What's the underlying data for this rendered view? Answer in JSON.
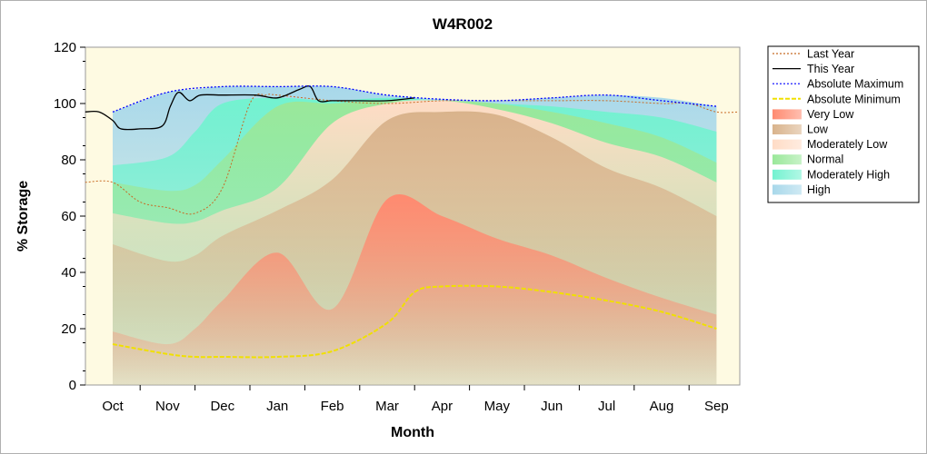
{
  "chart_data": {
    "type": "area",
    "title": "W4R002",
    "xlabel": "Month",
    "ylabel": "% Storage",
    "categories": [
      "Oct",
      "Nov",
      "Dec",
      "Jan",
      "Feb",
      "Mar",
      "Apr",
      "May",
      "Jun",
      "Jul",
      "Aug",
      "Sep"
    ],
    "yticks": [
      0,
      20,
      40,
      60,
      80,
      100,
      120
    ],
    "ylim": [
      0,
      120
    ],
    "grid": false,
    "legend_position": "top-right",
    "x": [
      0,
      1,
      1.5,
      2,
      3,
      4,
      5,
      6,
      7,
      8,
      9,
      10,
      11
    ],
    "bands": [
      {
        "name": "Very Low",
        "color": "#ff8a70",
        "values": [
          19,
          14.5,
          20,
          30,
          47,
          27,
          66,
          60,
          52,
          46,
          38,
          31,
          25
        ]
      },
      {
        "name": "Low",
        "color": "#d9b38c",
        "values": [
          50,
          44,
          46,
          53,
          62,
          73,
          94,
          97,
          96,
          88,
          77,
          70,
          60
        ]
      },
      {
        "name": "Moderately Low",
        "color": "#ffdcc6",
        "values": [
          61,
          57.5,
          58,
          62,
          70,
          93,
          100,
          101,
          98,
          93,
          86,
          81,
          72
        ]
      },
      {
        "name": "Normal",
        "color": "#9ae89a",
        "values": [
          72,
          69,
          71,
          80,
          99,
          100,
          101,
          101,
          100,
          97,
          93,
          88,
          79
        ]
      },
      {
        "name": "Moderately High",
        "color": "#73f2d0",
        "values": [
          78,
          81,
          90,
          100,
          102,
          101,
          102,
          101,
          100,
          99,
          97,
          95,
          90
        ]
      },
      {
        "name": "High",
        "color": "#a8d8ea",
        "values": [
          97,
          104,
          105,
          106,
          106,
          106,
          103,
          101.5,
          101,
          102,
          103,
          102,
          99
        ]
      }
    ],
    "series": [
      {
        "name": "Last Year",
        "color": "#c86a24",
        "x": [
          -0.5,
          0,
          0.5,
          1,
          1.5,
          2,
          2.5,
          2.8,
          3,
          4,
          5,
          6,
          7,
          8,
          9,
          10,
          10.5,
          11,
          11.4
        ],
        "values": [
          72,
          72,
          65,
          63,
          61,
          70,
          100,
          103,
          103,
          101,
          100,
          101,
          101,
          101,
          101,
          100,
          100,
          97,
          97
        ]
      },
      {
        "name": "This Year",
        "color": "#000000",
        "x": [
          -0.5,
          -0.25,
          0,
          0.15,
          0.5,
          0.9,
          1.05,
          1.2,
          1.4,
          1.6,
          2,
          2.6,
          3,
          3.4,
          3.6,
          3.75,
          4,
          4.4,
          5,
          5.5
        ],
        "values": [
          97,
          97,
          94,
          91,
          91,
          92,
          99,
          104,
          101,
          103,
          103,
          103,
          102,
          105,
          106,
          101,
          101,
          101,
          101,
          102
        ]
      },
      {
        "name": "Absolute Maximum",
        "color": "#0000ff",
        "x": [
          0,
          1,
          2,
          3,
          4,
          5,
          6,
          7,
          8,
          9,
          10,
          11
        ],
        "values": [
          97,
          104,
          106,
          106,
          106,
          103,
          101.5,
          101,
          102,
          103,
          101,
          99
        ]
      },
      {
        "name": "Absolute Minimum",
        "color": "#f0e000",
        "x": [
          0,
          1,
          1.5,
          2,
          3,
          4,
          5,
          5.5,
          6,
          7,
          8,
          9,
          10,
          11
        ],
        "values": [
          14.5,
          11,
          10,
          10,
          10,
          12,
          22,
          33,
          35,
          35,
          33,
          30,
          26,
          20
        ]
      }
    ],
    "legend": [
      {
        "label": "Last Year",
        "kind": "line",
        "color": "#c86a24"
      },
      {
        "label": "This Year",
        "kind": "line",
        "color": "#000000"
      },
      {
        "label": "Absolute Maximum",
        "kind": "line",
        "color": "#0000ff"
      },
      {
        "label": "Absolute Minimum",
        "kind": "line",
        "color": "#f0e000"
      },
      {
        "label": "Very Low",
        "kind": "fill",
        "color": "#ff8a70"
      },
      {
        "label": "Low",
        "kind": "fill",
        "color": "#d9b38c"
      },
      {
        "label": "Moderately Low",
        "kind": "fill",
        "color": "#ffdcc6"
      },
      {
        "label": "Normal",
        "kind": "fill",
        "color": "#9ae89a"
      },
      {
        "label": "Moderately High",
        "kind": "fill",
        "color": "#73f2d0"
      },
      {
        "label": "High",
        "kind": "fill",
        "color": "#a8d8ea"
      }
    ],
    "plot_background": "#fefae2"
  }
}
